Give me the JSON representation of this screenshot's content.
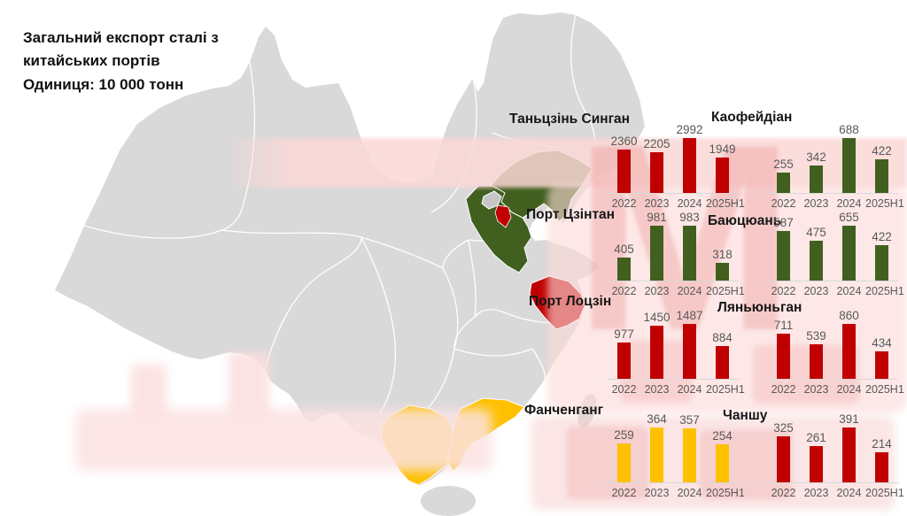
{
  "title": {
    "line1": "Загальний експорт сталі з",
    "line2": "китайських портів",
    "line3": "Одиниця: 10 000 тонн"
  },
  "colors": {
    "red": "#c00000",
    "green": "#41601f",
    "yellow": "#ffc000",
    "map_gray": "#d9d9d9",
    "capital_gray": "#c6c6c6",
    "label_gray": "#595959",
    "watermark_pink": "#f8d2d2"
  },
  "watermark": {
    "letter": "M"
  },
  "chart_data": [
    {
      "type": "bar",
      "port": "Таньцзінь Синган",
      "color_key": "red",
      "categories": [
        "2022",
        "2023",
        "2024",
        "2025H1"
      ],
      "values": [
        2360,
        2205,
        2992,
        1949
      ]
    },
    {
      "type": "bar",
      "port": "Каофейдіан",
      "color_key": "green",
      "categories": [
        "2022",
        "2023",
        "2024",
        "2025H1"
      ],
      "values": [
        255,
        342,
        688,
        422
      ]
    },
    {
      "type": "bar",
      "port": "Порт Цзінтан",
      "color_key": "green",
      "categories": [
        "2022",
        "2023",
        "2024",
        "2025H1"
      ],
      "values": [
        405,
        981,
        983,
        318
      ]
    },
    {
      "type": "bar",
      "port": "Баюцюань",
      "color_key": "green",
      "categories": [
        "2022",
        "2023",
        "2024",
        "2025H1"
      ],
      "values": [
        587,
        475,
        655,
        422
      ]
    },
    {
      "type": "bar",
      "port": "Порт Лоцзін",
      "color_key": "red",
      "categories": [
        "2022",
        "2023",
        "2024",
        "2025H1"
      ],
      "values": [
        977,
        1450,
        1487,
        884
      ]
    },
    {
      "type": "bar",
      "port": "Ляньюньган",
      "color_key": "red",
      "categories": [
        "2022",
        "2023",
        "2024",
        "2025H1"
      ],
      "values": [
        711,
        539,
        860,
        434
      ]
    },
    {
      "type": "bar",
      "port": "Фанченганг",
      "color_key": "yellow",
      "categories": [
        "2022",
        "2023",
        "2024",
        "2025H1"
      ],
      "values": [
        259,
        364,
        357,
        254
      ]
    },
    {
      "type": "bar",
      "port": "Чаншу",
      "color_key": "red",
      "categories": [
        "2022",
        "2023",
        "2024",
        "2025H1"
      ],
      "values": [
        325,
        261,
        391,
        214
      ]
    }
  ]
}
